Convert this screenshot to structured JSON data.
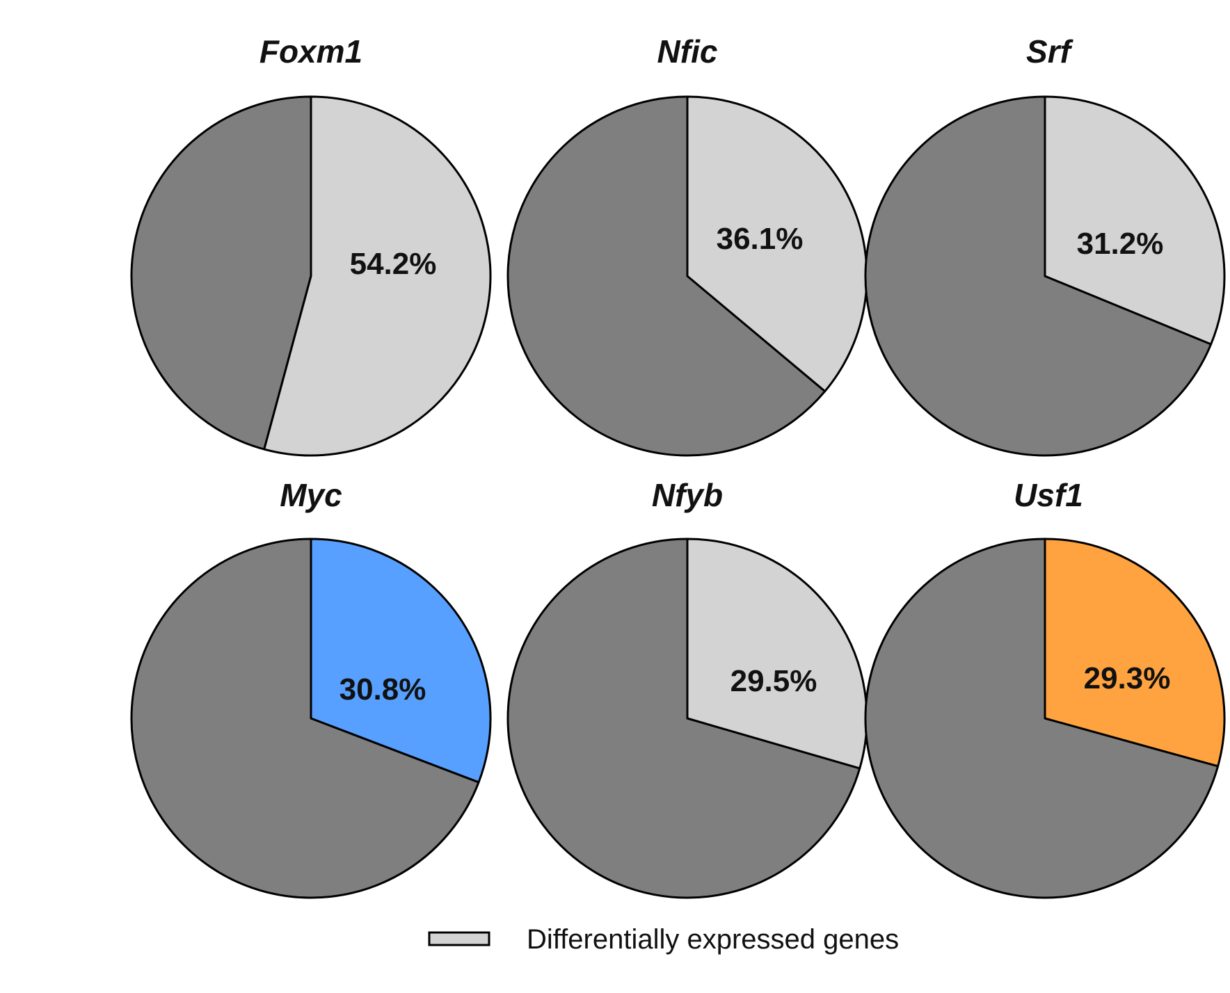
{
  "chart_data": {
    "type": "pie",
    "title": "",
    "unit": "%",
    "legend": {
      "position": "bottom",
      "entries": [
        {
          "label": "Differentially expressed genes",
          "color": "#d3d3d3"
        }
      ]
    },
    "background_slice_color": "#7f7f7f",
    "outline_color": "#000000",
    "pies": [
      {
        "id": "foxm1",
        "title": "Foxm1",
        "value": 54.2,
        "label": "54.2%",
        "highlight_color": "#d3d3d3"
      },
      {
        "id": "nfic",
        "title": "Nfic",
        "value": 36.1,
        "label": "36.1%",
        "highlight_color": "#d3d3d3"
      },
      {
        "id": "srf",
        "title": "Srf",
        "value": 31.2,
        "label": "31.2%",
        "highlight_color": "#d3d3d3"
      },
      {
        "id": "myc",
        "title": "Myc",
        "value": 30.8,
        "label": "30.8%",
        "highlight_color": "#57a0ff"
      },
      {
        "id": "nfyb",
        "title": "Nfyb",
        "value": 29.5,
        "label": "29.5%",
        "highlight_color": "#d3d3d3"
      },
      {
        "id": "usf1",
        "title": "Usf1",
        "value": 29.3,
        "label": "29.3%",
        "highlight_color": "#ffa340"
      }
    ]
  }
}
